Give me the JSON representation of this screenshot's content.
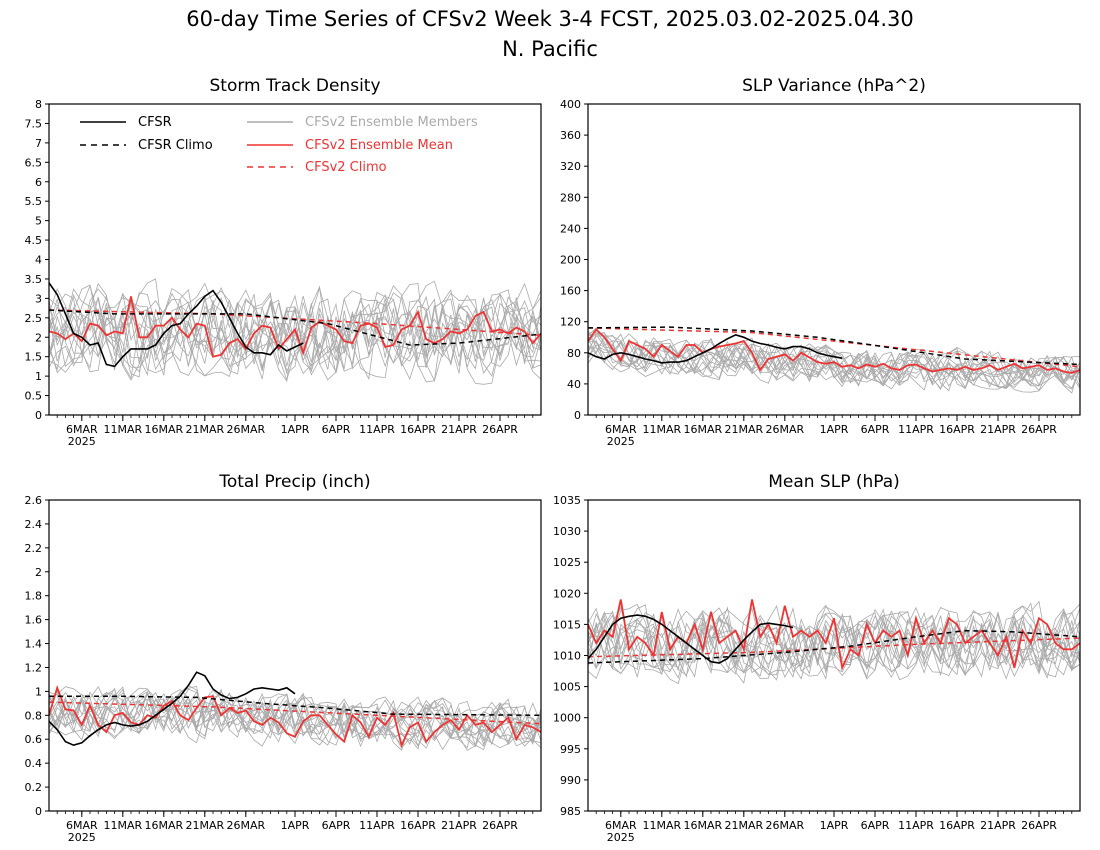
{
  "figure": {
    "title_line1": "60-day Time Series of CFSv2 Week 3-4 FCST, 2025.03.02-2025.04.30",
    "title_line2": "N. Pacific"
  },
  "legend": {
    "cfsr": "CFSR",
    "cfsr_climo": "CFSR Climo",
    "members": "CFSv2 Ensemble Members",
    "ens_mean": "CFSv2 Ensemble Mean",
    "cfsv2_climo": "CFSv2 Climo"
  },
  "colors": {
    "cfsr": "#000000",
    "members": "#aaaaaa",
    "ens_mean": "#ee3333",
    "cfsv2_climo": "#ee3333"
  },
  "x_axis": {
    "days": 60,
    "tick_days": [
      4,
      9,
      14,
      19,
      24,
      30,
      35,
      40,
      45,
      50,
      55
    ],
    "tick_labels": [
      "6MAR",
      "11MAR",
      "16MAR",
      "21MAR",
      "26MAR",
      "1APR",
      "6APR",
      "11APR",
      "16APR",
      "21APR",
      "26APR"
    ],
    "year_label": "2025"
  },
  "chart_data": [
    {
      "type": "line",
      "title": "Storm Track Density",
      "ylim": [
        0,
        8
      ],
      "yticks": [
        "0",
        "0.5",
        "1",
        "1.5",
        "2",
        "2.5",
        "3",
        "3.5",
        "4",
        "4.5",
        "5",
        "5.5",
        "6",
        "6.5",
        "7",
        "7.5",
        "8"
      ],
      "ytick_values": [
        0,
        0.5,
        1,
        1.5,
        2,
        2.5,
        3,
        3.5,
        4,
        4.5,
        5,
        5.5,
        6,
        6.5,
        7,
        7.5,
        8
      ],
      "cfsr": [
        3.4,
        3.1,
        2.6,
        2.1,
        2.0,
        1.8,
        1.85,
        1.3,
        1.25,
        1.5,
        1.7,
        1.7,
        1.7,
        1.8,
        2.1,
        2.3,
        2.35,
        2.6,
        2.8,
        3.05,
        3.2,
        2.9,
        2.5,
        2.1,
        1.75,
        1.6,
        1.6,
        1.55,
        1.8,
        1.65,
        1.75,
        1.85
      ],
      "cfsr_climo": [
        [
          0,
          2.7
        ],
        [
          8,
          2.6
        ],
        [
          24,
          2.6
        ],
        [
          34,
          2.35
        ],
        [
          44,
          1.8
        ],
        [
          50,
          1.85
        ],
        [
          60,
          2.08
        ]
      ],
      "cfsv2_climo": [
        [
          0,
          2.7
        ],
        [
          20,
          2.6
        ],
        [
          40,
          2.35
        ],
        [
          60,
          2.05
        ]
      ],
      "ens_mean": [
        2.15,
        2.1,
        1.95,
        2.1,
        1.9,
        2.35,
        2.3,
        2.05,
        2.15,
        2.1,
        3.05,
        2.0,
        2.0,
        2.3,
        2.3,
        2.5,
        2.2,
        2.0,
        2.35,
        2.3,
        1.5,
        1.55,
        1.85,
        1.95,
        1.7,
        2.1,
        2.3,
        2.25,
        1.7,
        1.95,
        2.2,
        1.6,
        2.25,
        2.4,
        2.3,
        2.2,
        1.9,
        1.85,
        2.3,
        2.35,
        2.25,
        1.75,
        1.8,
        2.2,
        2.3,
        2.65,
        1.95,
        1.85,
        1.95,
        2.15,
        2.1,
        2.2,
        2.55,
        2.65,
        2.15,
        2.2,
        2.1,
        2.25,
        2.15,
        1.85,
        2.1
      ],
      "members_center": [
        2.2,
        2.2,
        2.2,
        2.2,
        2.2,
        2.2,
        2.2,
        2.15,
        2.15,
        2.15,
        2.15,
        2.15,
        2.15,
        2.15,
        2.15,
        2.15,
        2.15,
        2.1,
        2.1,
        2.1,
        2.1,
        2.1,
        2.1,
        2.1,
        2.1,
        2.1,
        2.1,
        2.1,
        2.1,
        2.1,
        2.1,
        2.1,
        2.1,
        2.1,
        2.1,
        2.1,
        2.1,
        2.1,
        2.1,
        2.1,
        2.1,
        2.1,
        2.1,
        2.1,
        2.1,
        2.1,
        2.1,
        2.1,
        2.1,
        2.1,
        2.1,
        2.1,
        2.1,
        2.1,
        2.1,
        2.1,
        2.1,
        2.1,
        2.1,
        2.1,
        2.1
      ],
      "members_spread": 1.1
    },
    {
      "type": "line",
      "title": "SLP Variance (hPa^2)",
      "ylim": [
        0,
        400
      ],
      "yticks": [
        "0",
        "40",
        "80",
        "120",
        "160",
        "200",
        "240",
        "280",
        "320",
        "360",
        "400"
      ],
      "ytick_values": [
        0,
        40,
        80,
        120,
        160,
        200,
        240,
        280,
        320,
        360,
        400
      ],
      "cfsr": [
        80,
        75,
        72,
        78,
        80,
        78,
        75,
        72,
        70,
        67,
        68,
        68,
        70,
        75,
        80,
        85,
        92,
        98,
        103,
        100,
        95,
        92,
        90,
        87,
        85,
        88,
        88,
        85,
        80,
        77,
        75,
        73
      ],
      "cfsr_climo": [
        [
          0,
          112
        ],
        [
          10,
          113
        ],
        [
          20,
          108
        ],
        [
          28,
          100
        ],
        [
          36,
          88
        ],
        [
          46,
          72
        ],
        [
          60,
          65
        ]
      ],
      "cfsv2_climo": [
        [
          0,
          112
        ],
        [
          20,
          106
        ],
        [
          40,
          84
        ],
        [
          60,
          62
        ]
      ],
      "ens_mean": [
        95,
        110,
        100,
        85,
        70,
        95,
        90,
        85,
        75,
        90,
        82,
        75,
        90,
        90,
        80,
        85,
        88,
        90,
        92,
        95,
        80,
        58,
        72,
        75,
        78,
        70,
        80,
        74,
        68,
        66,
        68,
        62,
        64,
        60,
        65,
        62,
        66,
        60,
        58,
        64,
        65,
        60,
        56,
        58,
        60,
        58,
        62,
        58,
        60,
        64,
        58,
        62,
        66,
        60,
        62,
        64,
        58,
        60,
        56,
        54,
        58
      ],
      "members_center": [
        88,
        86,
        84,
        82,
        80,
        80,
        79,
        78,
        78,
        77,
        77,
        76,
        76,
        76,
        75,
        75,
        75,
        74,
        74,
        73,
        72,
        71,
        70,
        69,
        68,
        67,
        66,
        65,
        64,
        63,
        62,
        62,
        61,
        61,
        60,
        60,
        60,
        59,
        59,
        59,
        58,
        58,
        58,
        58,
        58,
        58,
        57,
        57,
        57,
        57,
        57,
        57,
        57,
        57,
        57,
        57,
        56,
        56,
        56,
        56,
        56
      ],
      "members_spread": 24
    },
    {
      "type": "line",
      "title": "Total Precip (inch)",
      "ylim": [
        0,
        2.6
      ],
      "yticks": [
        "0",
        "0.2",
        "0.4",
        "0.6",
        "0.8",
        "1",
        "1.2",
        "1.4",
        "1.6",
        "1.8",
        "2",
        "2.2",
        "2.4",
        "2.6"
      ],
      "ytick_values": [
        0,
        0.2,
        0.4,
        0.6,
        0.8,
        1,
        1.2,
        1.4,
        1.6,
        1.8,
        2,
        2.2,
        2.4,
        2.6
      ],
      "cfsr": [
        0.75,
        0.68,
        0.58,
        0.55,
        0.57,
        0.63,
        0.68,
        0.72,
        0.74,
        0.72,
        0.71,
        0.72,
        0.75,
        0.8,
        0.85,
        0.9,
        0.96,
        1.05,
        1.16,
        1.13,
        1.02,
        0.97,
        0.94,
        0.95,
        0.98,
        1.02,
        1.03,
        1.02,
        1.01,
        1.03,
        0.98
      ],
      "cfsr_climo": [
        [
          0,
          0.96
        ],
        [
          8,
          0.96
        ],
        [
          18,
          0.95
        ],
        [
          26,
          0.9
        ],
        [
          34,
          0.86
        ],
        [
          42,
          0.81
        ],
        [
          60,
          0.8
        ]
      ],
      "cfsv2_climo": [
        [
          0,
          0.91
        ],
        [
          20,
          0.87
        ],
        [
          40,
          0.8
        ],
        [
          60,
          0.73
        ]
      ],
      "ens_mean": [
        0.8,
        1.03,
        0.85,
        0.84,
        0.72,
        0.88,
        0.72,
        0.66,
        0.8,
        0.82,
        0.74,
        0.72,
        0.8,
        0.78,
        0.88,
        0.92,
        0.8,
        0.76,
        0.86,
        0.95,
        0.96,
        0.8,
        0.86,
        0.82,
        0.84,
        0.75,
        0.72,
        0.78,
        0.74,
        0.65,
        0.62,
        0.75,
        0.8,
        0.8,
        0.72,
        0.64,
        0.58,
        0.8,
        0.74,
        0.62,
        0.78,
        0.72,
        0.82,
        0.55,
        0.7,
        0.74,
        0.58,
        0.66,
        0.72,
        0.76,
        0.68,
        0.8,
        0.72,
        0.74,
        0.66,
        0.72,
        0.78,
        0.6,
        0.72,
        0.7,
        0.66
      ],
      "members_center": [
        0.82,
        0.82,
        0.82,
        0.82,
        0.82,
        0.82,
        0.82,
        0.82,
        0.82,
        0.82,
        0.82,
        0.82,
        0.82,
        0.82,
        0.82,
        0.82,
        0.82,
        0.82,
        0.8,
        0.8,
        0.8,
        0.8,
        0.8,
        0.8,
        0.78,
        0.78,
        0.78,
        0.78,
        0.76,
        0.76,
        0.76,
        0.76,
        0.74,
        0.74,
        0.74,
        0.74,
        0.74,
        0.74,
        0.72,
        0.72,
        0.72,
        0.72,
        0.72,
        0.72,
        0.72,
        0.72,
        0.72,
        0.72,
        0.72,
        0.72,
        0.72,
        0.72,
        0.72,
        0.72,
        0.72,
        0.72,
        0.72,
        0.72,
        0.72,
        0.72,
        0.72
      ],
      "members_spread": 0.2
    },
    {
      "type": "line",
      "title": "Mean SLP (hPa)",
      "ylim": [
        985,
        1035
      ],
      "yticks": [
        "985",
        "990",
        "995",
        "1000",
        "1005",
        "1010",
        "1015",
        "1020",
        "1025",
        "1030",
        "1035"
      ],
      "ytick_values": [
        985,
        990,
        995,
        1000,
        1005,
        1010,
        1015,
        1020,
        1025,
        1030,
        1035
      ],
      "cfsr": [
        1009.5,
        1011.0,
        1013.0,
        1015.0,
        1016.0,
        1016.3,
        1016.5,
        1016.3,
        1015.8,
        1015.0,
        1014.0,
        1013.0,
        1012.0,
        1011.0,
        1010.0,
        1009.0,
        1008.8,
        1009.5,
        1011.0,
        1012.5,
        1013.8,
        1015.0,
        1015.2,
        1015.0,
        1014.8,
        1014.5
      ],
      "cfsr_climo": [
        [
          0,
          1008.8
        ],
        [
          14,
          1009.5
        ],
        [
          24,
          1010.5
        ],
        [
          32,
          1011.5
        ],
        [
          40,
          1013
        ],
        [
          46,
          1014
        ],
        [
          52,
          1013.8
        ],
        [
          60,
          1013
        ]
      ],
      "cfsv2_climo": [
        [
          0,
          1009.8
        ],
        [
          20,
          1010.5
        ],
        [
          40,
          1011.8
        ],
        [
          60,
          1012.8
        ]
      ],
      "ens_mean": [
        1015,
        1012,
        1014,
        1013,
        1019,
        1011,
        1013,
        1012,
        1010,
        1017,
        1011,
        1013,
        1012,
        1015,
        1011,
        1017,
        1012,
        1013,
        1014,
        1011,
        1019,
        1013,
        1015,
        1012,
        1018,
        1013,
        1014,
        1013,
        1014,
        1012,
        1016,
        1008,
        1011,
        1010,
        1015,
        1012,
        1014,
        1013,
        1014,
        1010,
        1016,
        1012,
        1014,
        1012,
        1016,
        1015,
        1012,
        1013,
        1014,
        1012,
        1010,
        1013,
        1008,
        1014,
        1012,
        1016,
        1015,
        1012,
        1011,
        1011,
        1012
      ],
      "members_center": [
        1012,
        1012,
        1012,
        1012,
        1012,
        1012,
        1012,
        1012,
        1012,
        1012,
        1012,
        1012,
        1012,
        1012,
        1012,
        1012,
        1012,
        1012,
        1012,
        1012,
        1012,
        1012,
        1012,
        1012,
        1012,
        1012,
        1012,
        1012,
        1012,
        1012,
        1012,
        1012,
        1012,
        1012,
        1012,
        1012,
        1012,
        1012,
        1012,
        1012,
        1012,
        1012,
        1012,
        1012,
        1012,
        1012,
        1012,
        1012,
        1012,
        1012,
        1012,
        1012,
        1012,
        1012,
        1012,
        1012,
        1012,
        1012,
        1012,
        1012,
        1012
      ],
      "members_spread": 5.5
    }
  ]
}
